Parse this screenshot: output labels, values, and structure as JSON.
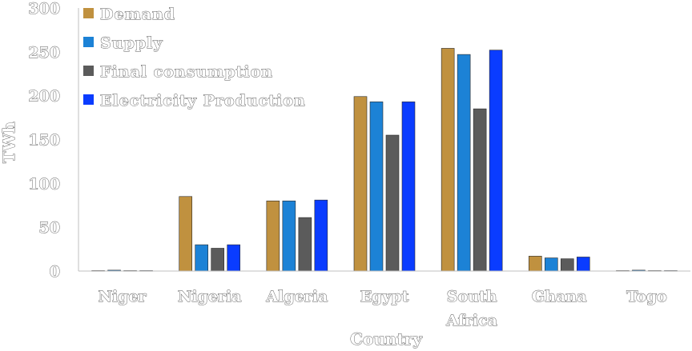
{
  "chart_data": {
    "type": "bar",
    "title": "",
    "xlabel": "Country",
    "ylabel": "TWh",
    "ylim": [
      0,
      300
    ],
    "yticks": [
      0,
      50,
      100,
      150,
      200,
      250,
      300
    ],
    "grid": false,
    "legend_position": "top-left",
    "categories": [
      {
        "lines": [
          "Niger"
        ]
      },
      {
        "lines": [
          "Nigeria"
        ]
      },
      {
        "lines": [
          "Algeria"
        ]
      },
      {
        "lines": [
          "Egypt"
        ]
      },
      {
        "lines": [
          "South",
          "Africa"
        ]
      },
      {
        "lines": [
          "Ghana"
        ]
      },
      {
        "lines": [
          "Togo"
        ]
      }
    ],
    "series": [
      {
        "name": "Demand",
        "color": "#c0913f",
        "values": [
          0.5,
          85,
          80,
          199,
          254,
          17,
          0.5
        ]
      },
      {
        "name": "Supply",
        "color": "#1c82d6",
        "values": [
          1,
          30,
          80,
          193,
          247,
          15,
          1
        ]
      },
      {
        "name": "Final consumption",
        "color": "#5b5b5b",
        "values": [
          0.5,
          26,
          61,
          155,
          185,
          14,
          0.5
        ]
      },
      {
        "name": "Electricity Production",
        "color": "#0a3cff",
        "values": [
          0.5,
          30,
          81,
          193,
          252,
          16,
          0.5
        ]
      }
    ]
  }
}
